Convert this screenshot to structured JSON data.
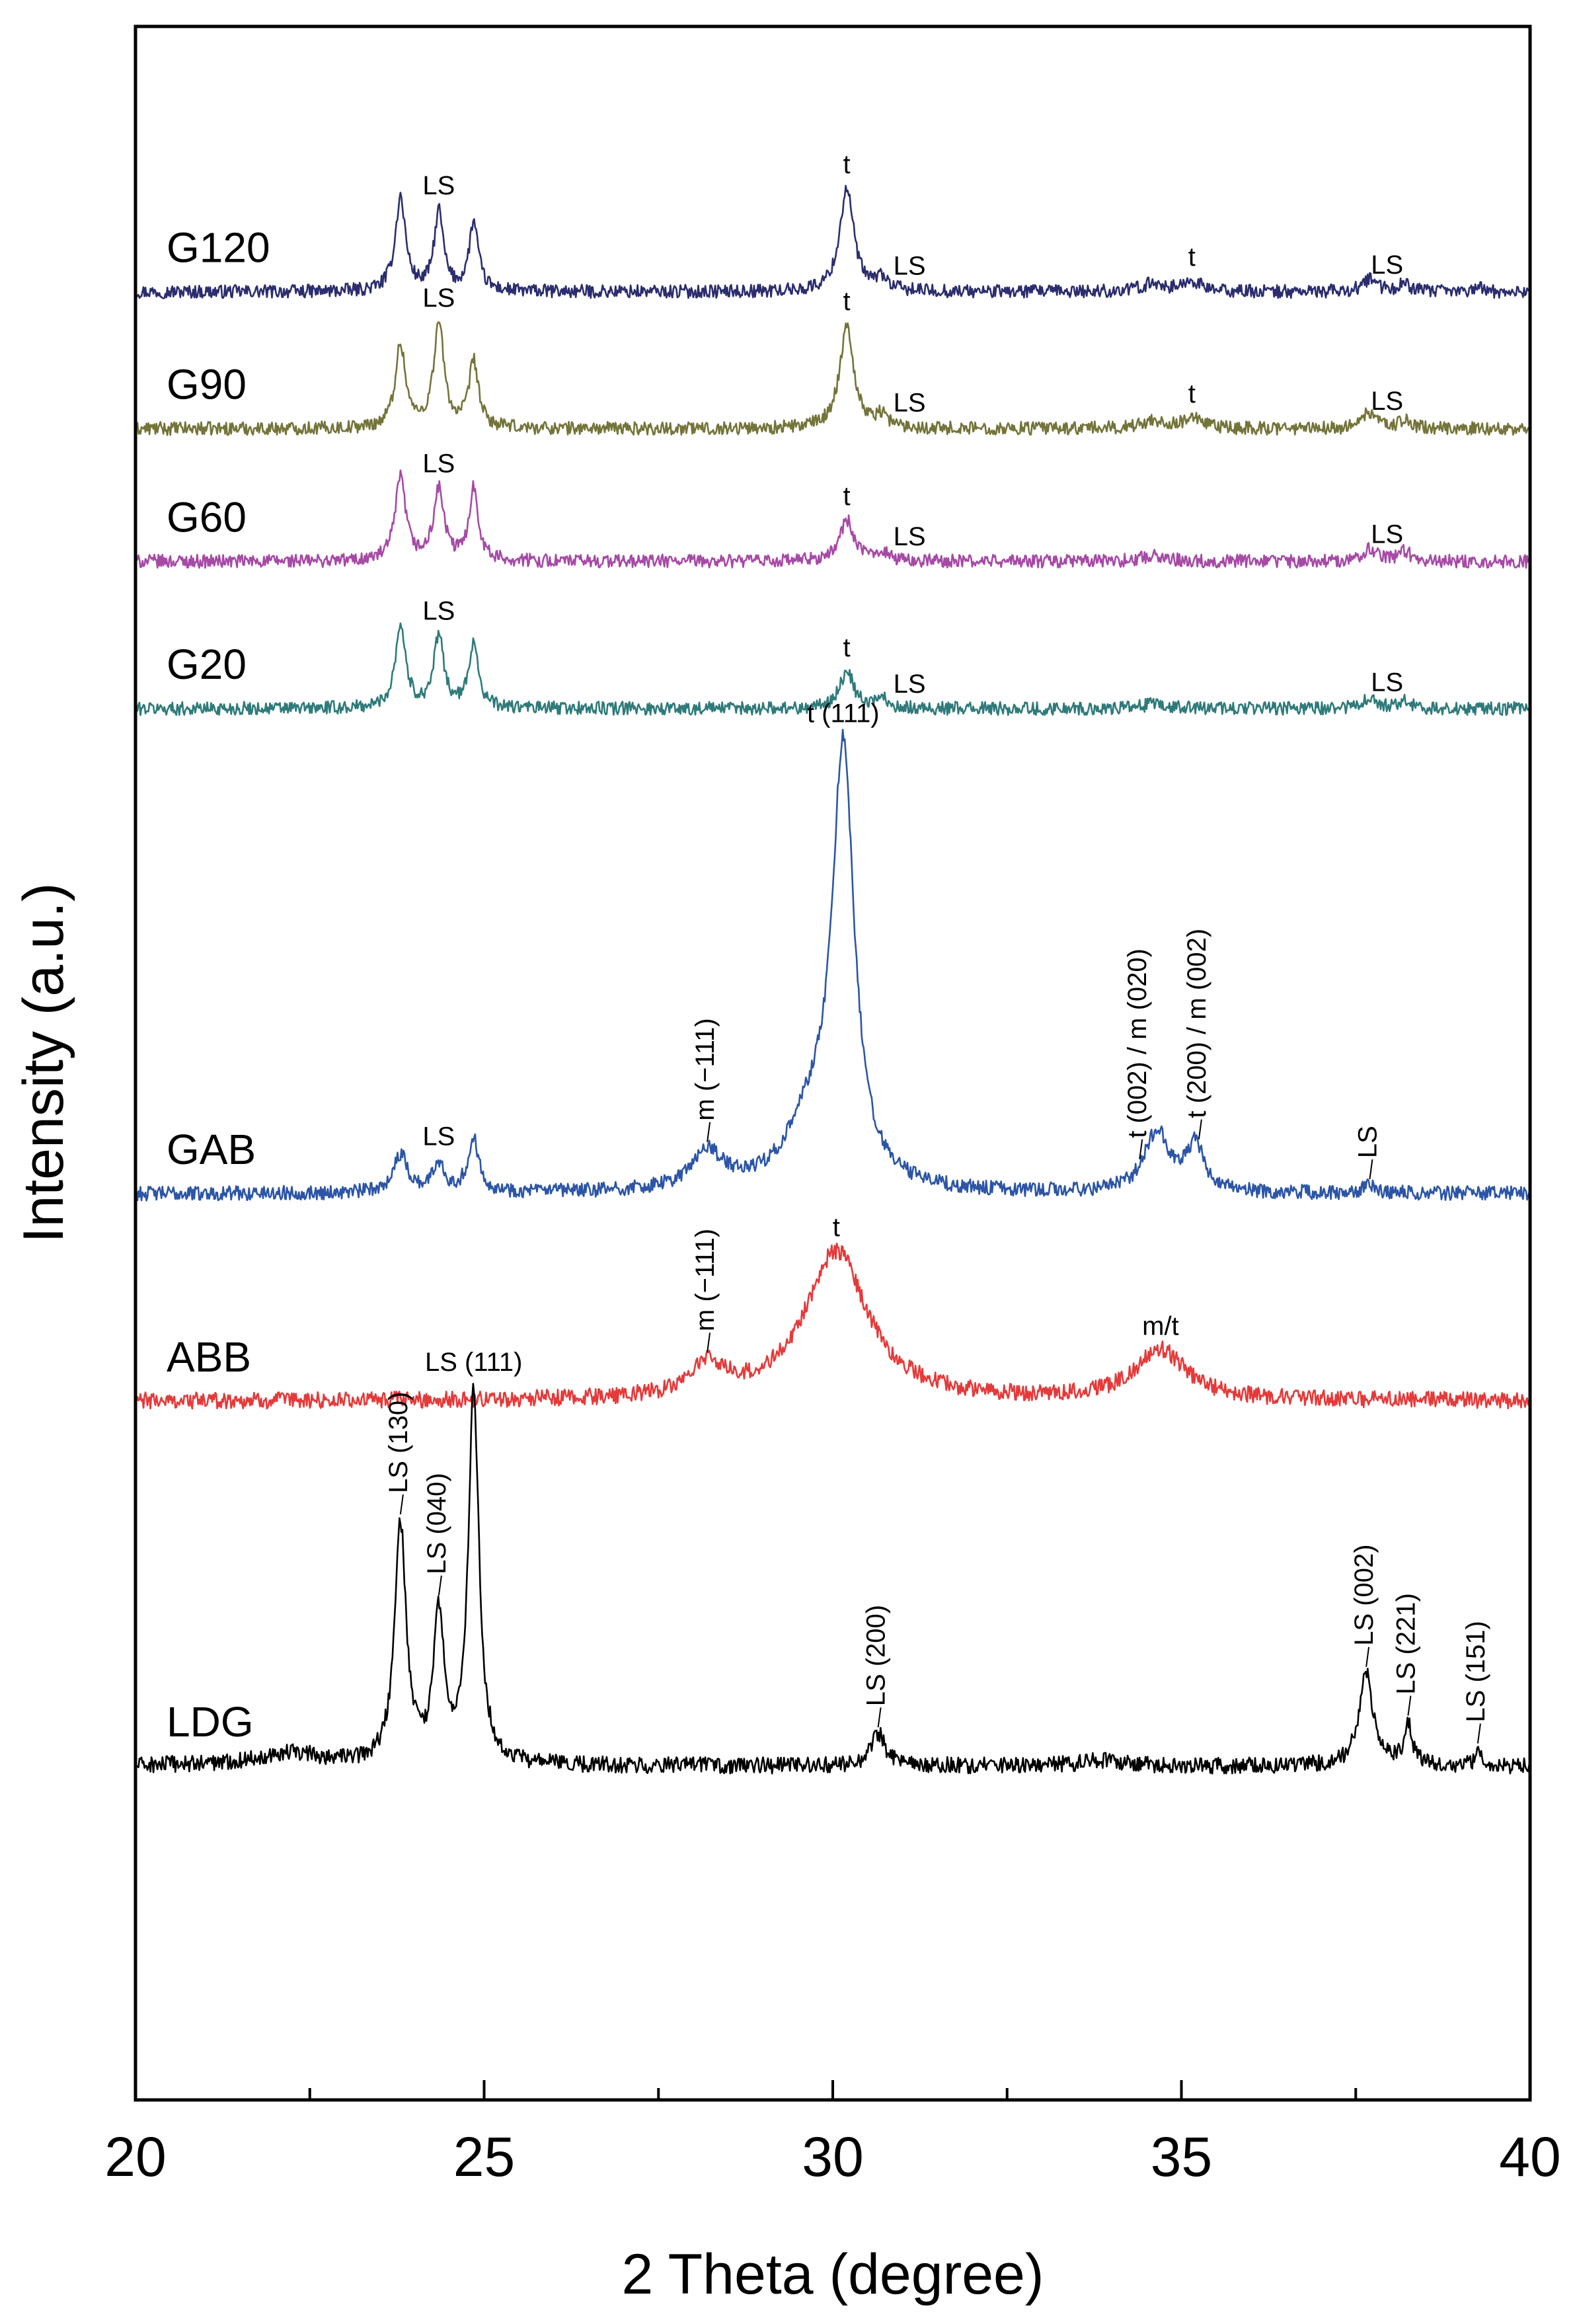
{
  "chart_data": {
    "type": "line",
    "title": "",
    "xlabel": "2 Theta (degree)",
    "ylabel": "Intensity (a.u.)",
    "xlim": [
      20,
      40
    ],
    "xticks": [
      20,
      25,
      30,
      35,
      40
    ],
    "xtick_labels": [
      "20",
      "25",
      "30",
      "35",
      "40"
    ],
    "grid": false,
    "legend": "inline labels at left of each trace",
    "series": [
      {
        "name": "G120",
        "color": "#2b2d6e",
        "baseline": 0.872,
        "noise": 0.0032,
        "peaks": [
          [
            23.8,
            0.045,
            0.09
          ],
          [
            24.35,
            0.038,
            0.08
          ],
          [
            24.85,
            0.033,
            0.08
          ],
          [
            30.2,
            0.05,
            0.12
          ],
          [
            30.7,
            0.006,
            0.1
          ],
          [
            34.6,
            0.004,
            0.2
          ],
          [
            35.15,
            0.005,
            0.15
          ],
          [
            37.7,
            0.006,
            0.12
          ],
          [
            38.2,
            0.004,
            0.1
          ],
          [
            39.25,
            0.003,
            0.06
          ]
        ]
      },
      {
        "name": "G90",
        "color": "#74743a",
        "baseline": 0.806,
        "noise": 0.0032,
        "peaks": [
          [
            23.8,
            0.04,
            0.09
          ],
          [
            24.35,
            0.05,
            0.09
          ],
          [
            24.85,
            0.032,
            0.08
          ],
          [
            30.2,
            0.05,
            0.12
          ],
          [
            30.7,
            0.006,
            0.1
          ],
          [
            34.6,
            0.004,
            0.2
          ],
          [
            35.15,
            0.005,
            0.15
          ],
          [
            37.7,
            0.008,
            0.12
          ],
          [
            38.2,
            0.004,
            0.1
          ]
        ]
      },
      {
        "name": "G60",
        "color": "#a64aa6",
        "baseline": 0.742,
        "noise": 0.0032,
        "peaks": [
          [
            23.8,
            0.04,
            0.09
          ],
          [
            24.35,
            0.034,
            0.09
          ],
          [
            24.85,
            0.035,
            0.08
          ],
          [
            30.2,
            0.02,
            0.12
          ],
          [
            30.7,
            0.005,
            0.1
          ],
          [
            34.6,
            0.003,
            0.2
          ],
          [
            37.7,
            0.006,
            0.12
          ],
          [
            38.2,
            0.005,
            0.1
          ]
        ]
      },
      {
        "name": "G20",
        "color": "#2f7a7a",
        "baseline": 0.671,
        "noise": 0.0032,
        "peaks": [
          [
            23.8,
            0.04,
            0.09
          ],
          [
            24.35,
            0.034,
            0.09
          ],
          [
            24.85,
            0.032,
            0.08
          ],
          [
            30.2,
            0.018,
            0.12
          ],
          [
            30.7,
            0.005,
            0.1
          ],
          [
            34.6,
            0.002,
            0.2
          ],
          [
            37.7,
            0.005,
            0.12
          ],
          [
            38.2,
            0.004,
            0.1
          ]
        ]
      },
      {
        "name": "GAB",
        "color": "#2c55a6",
        "baseline": 0.437,
        "noise": 0.0035,
        "peaks": [
          [
            23.8,
            0.018,
            0.13
          ],
          [
            24.35,
            0.014,
            0.1
          ],
          [
            24.85,
            0.025,
            0.1
          ],
          [
            28.2,
            0.018,
            0.28
          ],
          [
            30.15,
            0.205,
            0.19
          ],
          [
            29.7,
            0.03,
            0.45
          ],
          [
            34.65,
            0.029,
            0.22
          ],
          [
            35.2,
            0.022,
            0.15
          ],
          [
            37.7,
            0.004,
            0.12
          ]
        ]
      },
      {
        "name": "ABB",
        "color": "#e53a3a",
        "baseline": 0.337,
        "noise": 0.004,
        "peaks": [
          [
            28.2,
            0.015,
            0.3
          ],
          [
            30.05,
            0.072,
            0.55
          ],
          [
            34.7,
            0.024,
            0.45
          ]
        ]
      },
      {
        "name": "LDG",
        "color": "#000000",
        "baseline": 0.161,
        "noise": 0.004,
        "peaks": [
          [
            22.2,
            0.006,
            0.6
          ],
          [
            23.8,
            0.115,
            0.1
          ],
          [
            24.35,
            0.07,
            0.09
          ],
          [
            24.85,
            0.18,
            0.09
          ],
          [
            30.65,
            0.016,
            0.12
          ],
          [
            33.8,
            0.003,
            0.3
          ],
          [
            37.65,
            0.045,
            0.12
          ],
          [
            38.25,
            0.02,
            0.07
          ],
          [
            39.25,
            0.008,
            0.05
          ]
        ]
      }
    ],
    "annotations": [
      {
        "text": "LS",
        "series": "G120",
        "x": 24.35
      },
      {
        "text": "t",
        "series": "G120",
        "x": 30.2
      },
      {
        "text": "LS",
        "series": "G120",
        "x": 31.1
      },
      {
        "text": "t",
        "series": "G120",
        "x": 35.15
      },
      {
        "text": "LS",
        "series": "G120",
        "x": 37.95
      },
      {
        "text": "LS",
        "series": "G90",
        "x": 24.35
      },
      {
        "text": "t",
        "series": "G90",
        "x": 30.2
      },
      {
        "text": "LS",
        "series": "G90",
        "x": 31.1
      },
      {
        "text": "t",
        "series": "G90",
        "x": 35.15
      },
      {
        "text": "LS",
        "series": "G90",
        "x": 37.95
      },
      {
        "text": "LS",
        "series": "G60",
        "x": 24.35
      },
      {
        "text": "t",
        "series": "G60",
        "x": 30.2
      },
      {
        "text": "LS",
        "series": "G60",
        "x": 31.1
      },
      {
        "text": "LS",
        "series": "G60",
        "x": 37.95
      },
      {
        "text": "LS",
        "series": "G20",
        "x": 24.35
      },
      {
        "text": "t",
        "series": "G20",
        "x": 30.2
      },
      {
        "text": "LS",
        "series": "G20",
        "x": 31.1
      },
      {
        "text": "LS",
        "series": "G20",
        "x": 37.95
      },
      {
        "text": "t (111)",
        "series": "GAB",
        "x": 30.15
      },
      {
        "text": "LS",
        "series": "GAB",
        "x": 24.35
      },
      {
        "text": "m (−111)",
        "series": "GAB",
        "x": 28.2,
        "rotated": true
      },
      {
        "text": "t (002) / m (020)",
        "series": "GAB",
        "x": 34.4,
        "rotated": true
      },
      {
        "text": "t (200) / m (002)",
        "series": "GAB",
        "x": 35.25,
        "rotated": true
      },
      {
        "text": "LS",
        "series": "GAB",
        "x": 37.7,
        "rotated": true
      },
      {
        "text": "t",
        "series": "ABB",
        "x": 30.05
      },
      {
        "text": "m (−111)",
        "series": "ABB",
        "x": 28.2,
        "rotated": true
      },
      {
        "text": "m/t",
        "series": "ABB",
        "x": 34.7
      },
      {
        "text": "LS (130)",
        "series": "LDG",
        "x": 23.8,
        "rotated": true
      },
      {
        "text": "LS (040)",
        "series": "LDG",
        "x": 24.35,
        "rotated": true
      },
      {
        "text": "LS (111)",
        "series": "LDG",
        "x": 24.85
      },
      {
        "text": "LS (200)",
        "series": "LDG",
        "x": 30.65,
        "rotated": true
      },
      {
        "text": "LS (002)",
        "series": "LDG",
        "x": 37.65,
        "rotated": true
      },
      {
        "text": "LS (221)",
        "series": "LDG",
        "x": 38.25,
        "rotated": true
      },
      {
        "text": "LS (151)",
        "series": "LDG",
        "x": 39.25,
        "rotated": true
      }
    ]
  }
}
